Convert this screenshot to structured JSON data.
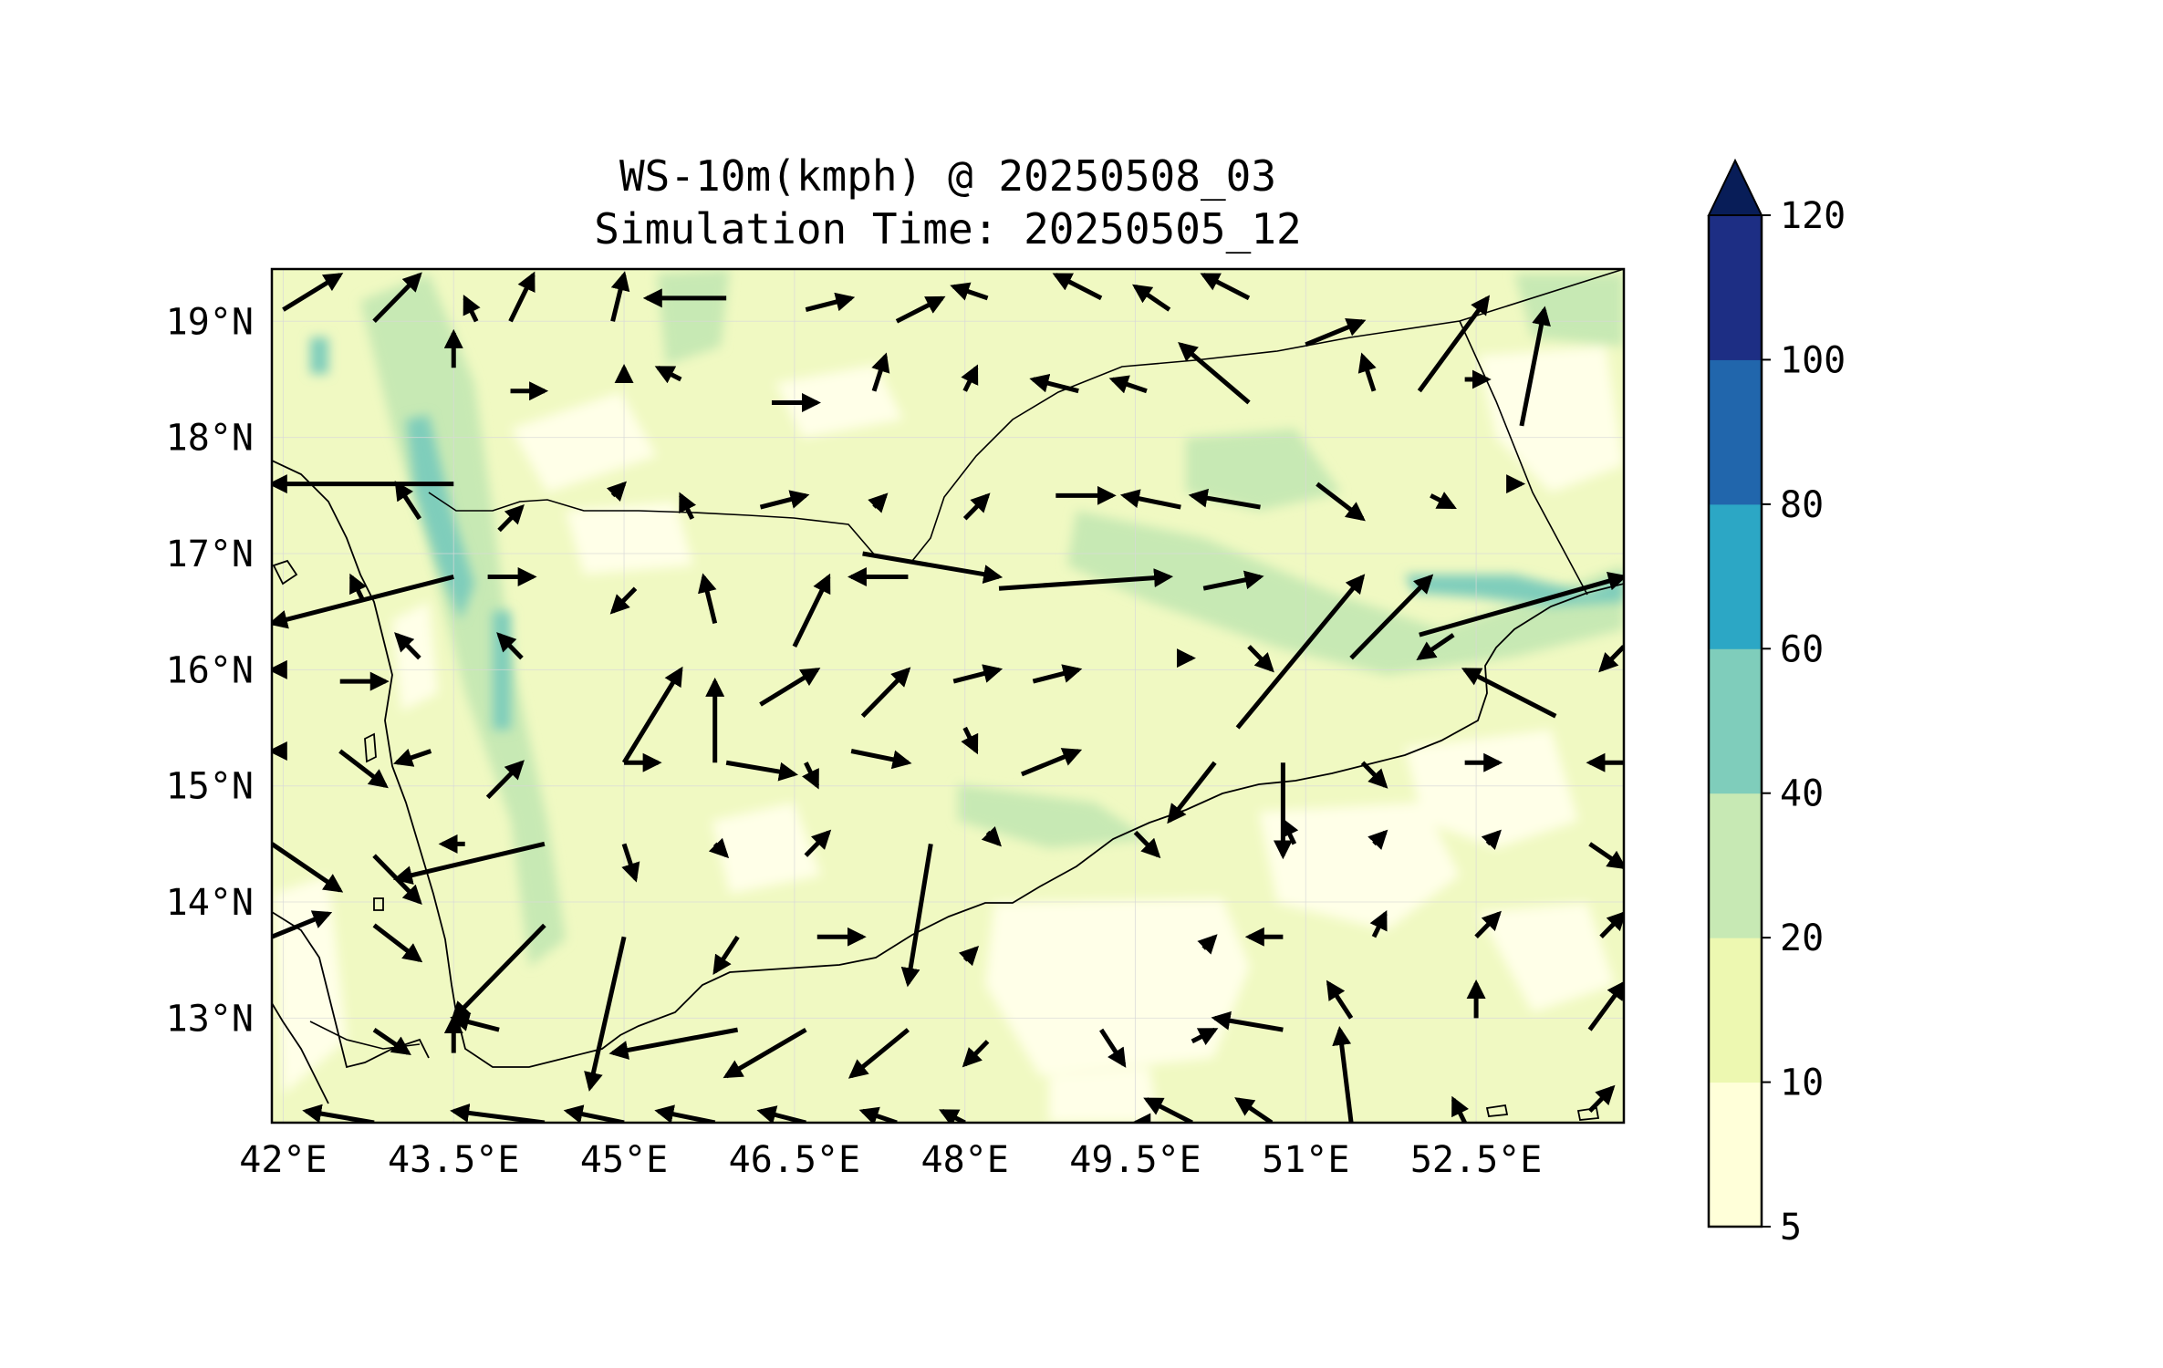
{
  "title": {
    "line1": "WS-10m(kmph) @ 20250508_03",
    "line2": "Simulation Time: 20250505_12"
  },
  "map": {
    "projection": "PlateCarree",
    "lon_range": [
      41.9,
      53.8
    ],
    "lat_range": [
      12.1,
      19.45
    ],
    "gridlines": true,
    "x_ticks": [
      {
        "lon": 42.0,
        "label": "42°E"
      },
      {
        "lon": 43.5,
        "label": "43.5°E"
      },
      {
        "lon": 45.0,
        "label": "45°E"
      },
      {
        "lon": 46.5,
        "label": "46.5°E"
      },
      {
        "lon": 48.0,
        "label": "48°E"
      },
      {
        "lon": 49.5,
        "label": "49.5°E"
      },
      {
        "lon": 51.0,
        "label": "51°E"
      },
      {
        "lon": 52.5,
        "label": "52.5°E"
      }
    ],
    "y_ticks": [
      {
        "lat": 19.0,
        "label": "19°N"
      },
      {
        "lat": 18.0,
        "label": "18°N"
      },
      {
        "lat": 17.0,
        "label": "17°N"
      },
      {
        "lat": 16.0,
        "label": "16°N"
      },
      {
        "lat": 15.0,
        "label": "15°N"
      },
      {
        "lat": 14.0,
        "label": "14°N"
      },
      {
        "lat": 13.0,
        "label": "13°N"
      }
    ]
  },
  "colorbar": {
    "levels": [
      {
        "label": "5"
      },
      {
        "label": "10"
      },
      {
        "label": "20"
      },
      {
        "label": "40"
      },
      {
        "label": "60"
      },
      {
        "label": "80"
      },
      {
        "label": "100"
      },
      {
        "label": "120"
      }
    ],
    "colors": [
      "#ffffd9",
      "#edf8b1",
      "#c7e9b4",
      "#7fcdbb",
      "#2ca7c5",
      "#2166ac",
      "#1d2e84"
    ],
    "extend_color": "#081d58",
    "extend": "max"
  },
  "chart_data": {
    "type": "vector field",
    "variable": "WS-10m",
    "units": "kmph",
    "vectors_note": "tail lon/lat and head lon/lat of each wind arrow, in degrees",
    "vectors": [
      [
        42.0,
        19.1,
        42.5,
        19.4
      ],
      [
        42.8,
        19.0,
        43.2,
        19.4
      ],
      [
        43.7,
        19.0,
        43.6,
        19.2
      ],
      [
        44.0,
        19.0,
        44.2,
        19.4
      ],
      [
        44.9,
        19.0,
        45.0,
        19.4
      ],
      [
        45.9,
        19.2,
        45.2,
        19.2
      ],
      [
        46.6,
        19.1,
        47.0,
        19.2
      ],
      [
        47.4,
        19.0,
        47.8,
        19.2
      ],
      [
        48.2,
        19.2,
        47.9,
        19.3
      ],
      [
        49.2,
        19.2,
        48.8,
        19.4
      ],
      [
        49.8,
        19.1,
        49.5,
        19.3
      ],
      [
        50.5,
        19.2,
        50.1,
        19.4
      ],
      [
        43.5,
        18.6,
        43.5,
        18.9
      ],
      [
        44.0,
        18.4,
        44.3,
        18.4
      ],
      [
        45.0,
        18.5,
        45.0,
        18.6
      ],
      [
        45.5,
        18.5,
        45.3,
        18.6
      ],
      [
        46.3,
        18.3,
        46.7,
        18.3
      ],
      [
        47.2,
        18.4,
        47.3,
        18.7
      ],
      [
        48.0,
        18.4,
        48.1,
        18.6
      ],
      [
        49.0,
        18.4,
        48.6,
        18.5
      ],
      [
        49.6,
        18.4,
        49.3,
        18.5
      ],
      [
        50.5,
        18.3,
        49.9,
        18.8
      ],
      [
        51.0,
        18.8,
        51.5,
        19.0
      ],
      [
        51.6,
        18.4,
        51.5,
        18.7
      ],
      [
        52.0,
        18.4,
        52.6,
        19.2
      ],
      [
        52.4,
        18.5,
        52.6,
        18.5
      ],
      [
        52.9,
        18.1,
        53.1,
        19.1
      ],
      [
        43.5,
        17.6,
        41.9,
        17.6
      ],
      [
        43.2,
        17.3,
        43.0,
        17.6
      ],
      [
        43.9,
        17.2,
        44.1,
        17.4
      ],
      [
        44.9,
        17.5,
        45.0,
        17.6
      ],
      [
        45.6,
        17.3,
        45.5,
        17.5
      ],
      [
        46.2,
        17.4,
        46.6,
        17.5
      ],
      [
        47.2,
        17.4,
        47.3,
        17.5
      ],
      [
        48.0,
        17.3,
        48.2,
        17.5
      ],
      [
        48.8,
        17.5,
        49.3,
        17.5
      ],
      [
        49.9,
        17.4,
        49.4,
        17.5
      ],
      [
        50.6,
        17.4,
        50.0,
        17.5
      ],
      [
        51.1,
        17.6,
        51.5,
        17.3
      ],
      [
        52.1,
        17.5,
        52.3,
        17.4
      ],
      [
        52.8,
        17.6,
        52.9,
        17.6
      ],
      [
        43.5,
        16.8,
        41.9,
        16.4
      ],
      [
        42.7,
        16.6,
        42.6,
        16.8
      ],
      [
        43.8,
        16.8,
        44.2,
        16.8
      ],
      [
        45.1,
        16.7,
        44.9,
        16.5
      ],
      [
        45.8,
        16.4,
        45.7,
        16.8
      ],
      [
        46.5,
        16.2,
        46.8,
        16.8
      ],
      [
        47.5,
        16.8,
        47.0,
        16.8
      ],
      [
        47.1,
        17.0,
        48.3,
        16.8
      ],
      [
        48.3,
        16.7,
        49.8,
        16.8
      ],
      [
        50.1,
        16.7,
        50.6,
        16.8
      ],
      [
        52.0,
        16.3,
        53.8,
        16.8
      ],
      [
        43.2,
        16.1,
        43.0,
        16.3
      ],
      [
        44.1,
        16.1,
        43.9,
        16.3
      ],
      [
        45.0,
        15.2,
        45.5,
        16.0
      ],
      [
        45.8,
        15.2,
        45.8,
        15.9
      ],
      [
        46.2,
        15.7,
        46.7,
        16.0
      ],
      [
        47.1,
        15.6,
        47.5,
        16.0
      ],
      [
        47.9,
        15.9,
        48.3,
        16.0
      ],
      [
        48.6,
        15.9,
        49.0,
        16.0
      ],
      [
        49.9,
        16.1,
        50.0,
        16.1
      ],
      [
        50.5,
        16.2,
        50.7,
        16.0
      ],
      [
        50.4,
        15.5,
        51.5,
        16.8
      ],
      [
        51.4,
        16.1,
        52.1,
        16.8
      ],
      [
        52.3,
        16.3,
        52.0,
        16.1
      ],
      [
        53.2,
        15.6,
        52.4,
        16.0
      ],
      [
        53.8,
        16.2,
        53.6,
        16.0
      ],
      [
        42.0,
        16.0,
        41.9,
        16.0
      ],
      [
        42.5,
        15.9,
        42.9,
        15.9
      ],
      [
        42.0,
        15.3,
        41.9,
        15.3
      ],
      [
        42.5,
        15.3,
        42.9,
        15.0
      ],
      [
        43.3,
        15.3,
        43.0,
        15.2
      ],
      [
        43.8,
        14.9,
        44.1,
        15.2
      ],
      [
        45.0,
        15.2,
        45.3,
        15.2
      ],
      [
        45.9,
        15.2,
        46.5,
        15.1
      ],
      [
        46.6,
        15.2,
        46.7,
        15.0
      ],
      [
        47.0,
        15.3,
        47.5,
        15.2
      ],
      [
        48.0,
        15.5,
        48.1,
        15.3
      ],
      [
        48.5,
        15.1,
        49.0,
        15.3
      ],
      [
        50.2,
        15.2,
        49.8,
        14.7
      ],
      [
        50.8,
        15.2,
        50.8,
        14.4
      ],
      [
        51.5,
        15.2,
        51.7,
        15.0
      ],
      [
        52.4,
        15.2,
        52.7,
        15.2
      ],
      [
        53.8,
        15.2,
        53.5,
        15.2
      ],
      [
        41.9,
        14.5,
        42.5,
        14.1
      ],
      [
        42.8,
        14.4,
        43.2,
        14.0
      ],
      [
        44.3,
        14.5,
        43.0,
        14.2
      ],
      [
        43.6,
        14.5,
        43.4,
        14.5
      ],
      [
        45.0,
        14.5,
        45.1,
        14.2
      ],
      [
        45.8,
        14.5,
        45.9,
        14.4
      ],
      [
        46.6,
        14.4,
        46.8,
        14.6
      ],
      [
        47.7,
        14.5,
        47.5,
        13.3
      ],
      [
        48.2,
        14.6,
        48.3,
        14.5
      ],
      [
        49.5,
        14.6,
        49.7,
        14.4
      ],
      [
        50.9,
        14.5,
        50.8,
        14.7
      ],
      [
        51.6,
        14.5,
        51.7,
        14.6
      ],
      [
        52.6,
        14.5,
        52.7,
        14.6
      ],
      [
        53.5,
        14.5,
        53.8,
        14.3
      ],
      [
        41.9,
        13.7,
        42.4,
        13.9
      ],
      [
        42.8,
        13.8,
        43.2,
        13.5
      ],
      [
        44.3,
        13.8,
        43.5,
        13.0
      ],
      [
        45.0,
        13.7,
        44.7,
        12.4
      ],
      [
        46.0,
        13.7,
        45.8,
        13.4
      ],
      [
        46.7,
        13.7,
        47.1,
        13.7
      ],
      [
        48.0,
        13.5,
        48.1,
        13.6
      ],
      [
        50.1,
        13.6,
        50.2,
        13.7
      ],
      [
        50.8,
        13.7,
        50.5,
        13.7
      ],
      [
        51.6,
        13.7,
        51.7,
        13.9
      ],
      [
        52.5,
        13.7,
        52.7,
        13.9
      ],
      [
        53.6,
        13.7,
        53.8,
        13.9
      ],
      [
        42.8,
        12.9,
        43.1,
        12.7
      ],
      [
        43.9,
        12.9,
        43.5,
        13.0
      ],
      [
        43.5,
        12.7,
        43.5,
        13.0
      ],
      [
        46.0,
        12.9,
        44.9,
        12.7
      ],
      [
        46.6,
        12.9,
        45.9,
        12.5
      ],
      [
        47.5,
        12.9,
        47.0,
        12.5
      ],
      [
        48.2,
        12.8,
        48.0,
        12.6
      ],
      [
        49.2,
        12.9,
        49.4,
        12.6
      ],
      [
        50.0,
        12.8,
        50.2,
        12.9
      ],
      [
        50.8,
        12.9,
        50.2,
        13.0
      ],
      [
        51.4,
        12.1,
        51.3,
        12.9
      ],
      [
        51.4,
        13.0,
        51.2,
        13.3
      ],
      [
        52.5,
        13.0,
        52.5,
        13.3
      ],
      [
        53.5,
        12.9,
        53.8,
        13.3
      ],
      [
        42.8,
        12.1,
        42.2,
        12.2
      ],
      [
        44.3,
        12.1,
        43.5,
        12.2
      ],
      [
        45.0,
        12.1,
        44.5,
        12.2
      ],
      [
        45.8,
        12.1,
        45.3,
        12.2
      ],
      [
        46.6,
        12.1,
        46.2,
        12.2
      ],
      [
        47.4,
        12.1,
        47.1,
        12.2
      ],
      [
        48.0,
        12.1,
        47.8,
        12.2
      ],
      [
        49.6,
        12.1,
        49.5,
        12.1
      ],
      [
        50.0,
        12.1,
        49.6,
        12.3
      ],
      [
        50.7,
        12.1,
        50.4,
        12.3
      ],
      [
        52.4,
        12.1,
        52.3,
        12.3
      ],
      [
        53.5,
        12.2,
        53.7,
        12.4
      ]
    ]
  }
}
